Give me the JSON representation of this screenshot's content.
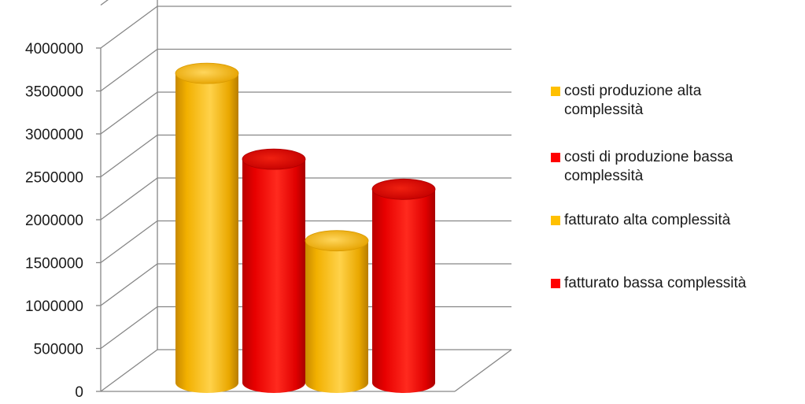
{
  "chart_data": {
    "type": "bar",
    "style": "3d-cylinder",
    "categories": [
      ""
    ],
    "series": [
      {
        "name": "costi produzione alta complessità",
        "values": [
          3650000
        ],
        "color": "#FFC000"
      },
      {
        "name": "costi di produzione bassa complessità",
        "values": [
          2650000
        ],
        "color": "#FF0000"
      },
      {
        "name": "fatturato alta complessità",
        "values": [
          1700000
        ],
        "color": "#FFC000"
      },
      {
        "name": "fatturato bassa complessità",
        "values": [
          2300000
        ],
        "color": "#FF0000"
      }
    ],
    "y_ticks": [
      "0",
      "500000",
      "1000000",
      "1500000",
      "2000000",
      "2500000",
      "3000000",
      "3500000",
      "4000000"
    ],
    "ylim": [
      0,
      4000000
    ],
    "grid": true,
    "legend": "right",
    "colors": {
      "gold": "#FFC000",
      "red": "#FF0000",
      "grid": "#868686"
    }
  }
}
